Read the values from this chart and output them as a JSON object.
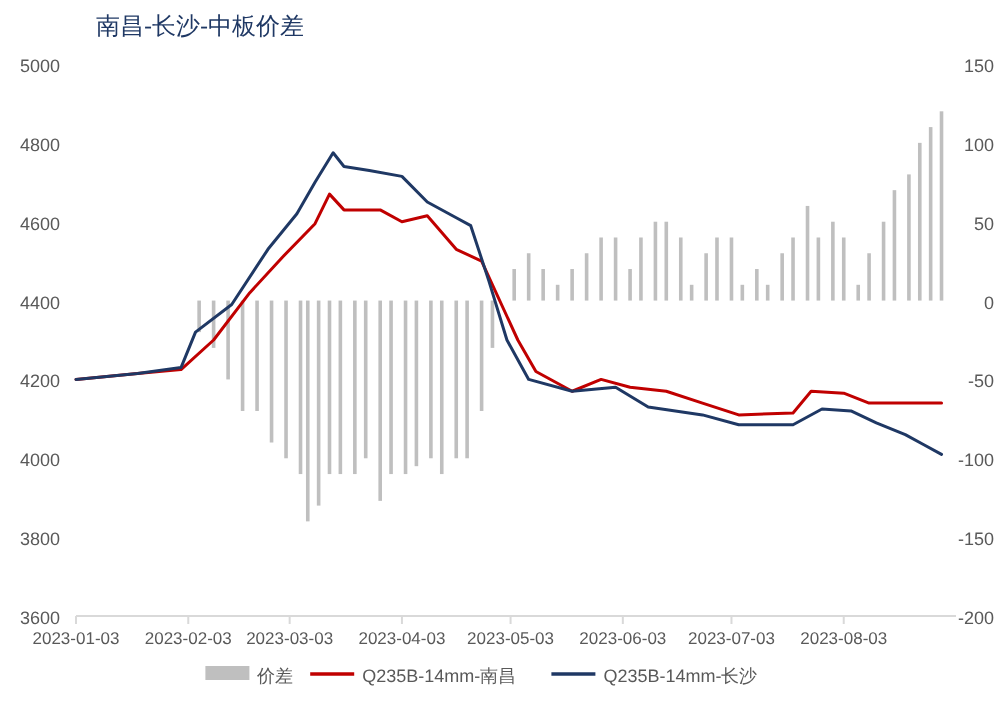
{
  "chart_data": {
    "type": "line",
    "title": "南昌-长沙-中板价差",
    "xlim": [
      "2023-01-03",
      "2023-09-03"
    ],
    "xticks": [
      "2023-01-03",
      "2023-02-03",
      "2023-03-03",
      "2023-04-03",
      "2023-05-03",
      "2023-06-03",
      "2023-07-03",
      "2023-08-03"
    ],
    "ylim": [
      3600,
      5000
    ],
    "yticks": [
      3600,
      3800,
      4000,
      4200,
      4400,
      4600,
      4800,
      5000
    ],
    "y2lim": [
      -200,
      150
    ],
    "y2ticks": [
      -200,
      -150,
      -100,
      -50,
      0,
      50,
      100,
      150
    ],
    "legend": "bottom",
    "series": [
      {
        "name": "价差",
        "type": "bar",
        "axis": "y2",
        "color": "#bfbfbf",
        "x": [
          "2023-02-06",
          "2023-02-10",
          "2023-02-14",
          "2023-02-18",
          "2023-02-22",
          "2023-02-26",
          "2023-03-02",
          "2023-03-06",
          "2023-03-08",
          "2023-03-11",
          "2023-03-14",
          "2023-03-17",
          "2023-03-21",
          "2023-03-24",
          "2023-03-28",
          "2023-03-31",
          "2023-04-04",
          "2023-04-07",
          "2023-04-11",
          "2023-04-14",
          "2023-04-18",
          "2023-04-21",
          "2023-04-25",
          "2023-04-28",
          "2023-05-04",
          "2023-05-08",
          "2023-05-12",
          "2023-05-16",
          "2023-05-20",
          "2023-05-24",
          "2023-05-28",
          "2023-06-01",
          "2023-06-05",
          "2023-06-08",
          "2023-06-12",
          "2023-06-15",
          "2023-06-19",
          "2023-06-22",
          "2023-06-26",
          "2023-06-29",
          "2023-07-03",
          "2023-07-06",
          "2023-07-10",
          "2023-07-13",
          "2023-07-17",
          "2023-07-20",
          "2023-07-24",
          "2023-07-27",
          "2023-07-31",
          "2023-08-03",
          "2023-08-07",
          "2023-08-10",
          "2023-08-14",
          "2023-08-17",
          "2023-08-21",
          "2023-08-24",
          "2023-08-27",
          "2023-08-30"
        ],
        "values": [
          -20,
          -30,
          -50,
          -70,
          -70,
          -90,
          -100,
          -110,
          -140,
          -130,
          -110,
          -110,
          -110,
          -100,
          -127,
          -110,
          -110,
          -105,
          -100,
          -110,
          -100,
          -100,
          -70,
          -30,
          20,
          30,
          20,
          10,
          20,
          30,
          40,
          40,
          20,
          40,
          50,
          50,
          40,
          10,
          30,
          40,
          40,
          10,
          20,
          10,
          30,
          40,
          60,
          40,
          50,
          40,
          10,
          30,
          50,
          70,
          80,
          100,
          110,
          120
        ]
      },
      {
        "name": "Q235B-14mm-南昌",
        "color": "#c00000",
        "x": [
          "2023-01-03",
          "2023-01-20",
          "2023-02-01",
          "2023-02-10",
          "2023-02-20",
          "2023-03-01",
          "2023-03-10",
          "2023-03-14",
          "2023-03-18",
          "2023-03-28",
          "2023-04-03",
          "2023-04-10",
          "2023-04-18",
          "2023-04-25",
          "2023-04-28",
          "2023-05-05",
          "2023-05-10",
          "2023-05-20",
          "2023-05-28",
          "2023-06-05",
          "2023-06-15",
          "2023-06-25",
          "2023-07-05",
          "2023-07-20",
          "2023-07-25",
          "2023-08-03",
          "2023-08-10",
          "2023-08-20",
          "2023-08-30"
        ],
        "values": [
          4200,
          4215,
          4225,
          4300,
          4420,
          4510,
          4595,
          4670,
          4630,
          4630,
          4600,
          4615,
          4530,
          4500,
          4440,
          4300,
          4220,
          4170,
          4200,
          4180,
          4170,
          4140,
          4110,
          4115,
          4170,
          4165,
          4140,
          4140,
          4140
        ]
      },
      {
        "name": "Q235B-14mm-长沙",
        "color": "#1f3864",
        "x": [
          "2023-01-03",
          "2023-01-20",
          "2023-02-01",
          "2023-02-05",
          "2023-02-15",
          "2023-02-25",
          "2023-03-05",
          "2023-03-10",
          "2023-03-15",
          "2023-03-18",
          "2023-03-25",
          "2023-04-03",
          "2023-04-10",
          "2023-04-18",
          "2023-04-22",
          "2023-04-27",
          "2023-05-02",
          "2023-05-08",
          "2023-05-20",
          "2023-06-01",
          "2023-06-10",
          "2023-06-25",
          "2023-07-05",
          "2023-07-20",
          "2023-07-28",
          "2023-08-05",
          "2023-08-12",
          "2023-08-20",
          "2023-08-25",
          "2023-08-30"
        ],
        "values": [
          4200,
          4215,
          4230,
          4320,
          4390,
          4530,
          4620,
          4700,
          4775,
          4740,
          4730,
          4715,
          4650,
          4610,
          4590,
          4450,
          4300,
          4200,
          4170,
          4180,
          4130,
          4110,
          4085,
          4085,
          4125,
          4120,
          4090,
          4060,
          4035,
          4010
        ]
      }
    ]
  }
}
